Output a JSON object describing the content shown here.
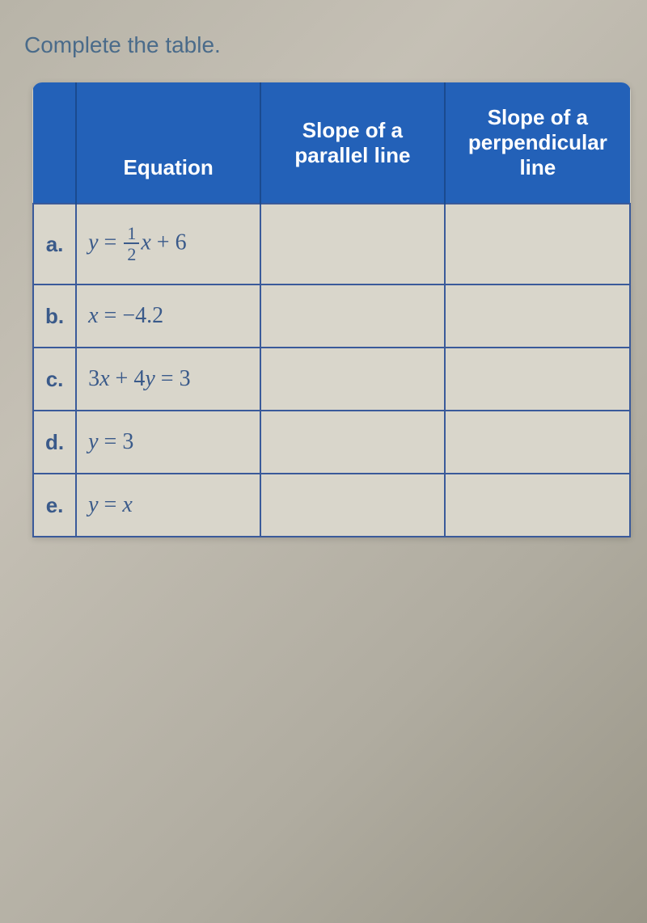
{
  "instruction": "Complete the table.",
  "table": {
    "header_bg": "#2361b8",
    "header_text_color": "#ffffff",
    "border_color": "#3a5a9a",
    "cell_bg": "#d4d0c4",
    "text_color": "#3a5a8a",
    "columns": [
      "",
      "Equation",
      "Slope of a parallel line",
      "Slope of a perpendicular line"
    ],
    "rows": [
      {
        "label": "a.",
        "equation_html": "<span class='var'>y</span> <span class='num-lit'>=</span> <span class='fraction'><span class='num'>1</span><span class='den'>2</span></span><span class='var'>x</span> <span class='num-lit'>+ 6</span>",
        "parallel": "",
        "perpendicular": ""
      },
      {
        "label": "b.",
        "equation_html": "<span class='var'>x</span> <span class='num-lit'>= −4.2</span>",
        "parallel": "",
        "perpendicular": ""
      },
      {
        "label": "c.",
        "equation_html": "<span class='num-lit'>3</span><span class='var'>x</span> <span class='num-lit'>+ 4</span><span class='var'>y</span> <span class='num-lit'>= 3</span>",
        "parallel": "",
        "perpendicular": ""
      },
      {
        "label": "d.",
        "equation_html": "<span class='var'>y</span> <span class='num-lit'>= 3</span>",
        "parallel": "",
        "perpendicular": ""
      },
      {
        "label": "e.",
        "equation_html": "<span class='var'>y</span> <span class='num-lit'>=</span> <span class='var'>x</span>",
        "parallel": "",
        "perpendicular": ""
      }
    ]
  }
}
